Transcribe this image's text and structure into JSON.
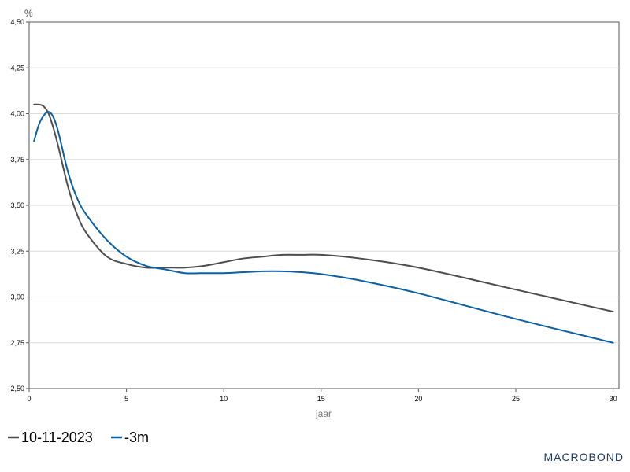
{
  "chart_data": {
    "type": "line",
    "unit_label": "%",
    "xlabel": "jaar",
    "ylabel": "",
    "xlim": [
      0,
      30.3
    ],
    "ylim": [
      2.5,
      4.5
    ],
    "x_ticks": [
      0,
      5,
      10,
      15,
      20,
      25,
      30
    ],
    "x_tick_labels": [
      "0",
      "5",
      "10",
      "15",
      "20",
      "25",
      "30"
    ],
    "y_ticks": [
      2.5,
      2.75,
      3.0,
      3.25,
      3.5,
      3.75,
      4.0,
      4.25,
      4.5
    ],
    "y_tick_labels": [
      "2,50",
      "2,75",
      "3,00",
      "3,25",
      "3,50",
      "3,75",
      "4,00",
      "4,25",
      "4,50"
    ],
    "grid": "horizontal",
    "legend_position": "bottom-left",
    "series": [
      {
        "name": "10-11-2023",
        "color": "#4d4d4d",
        "x": [
          0.25,
          0.5,
          0.75,
          1,
          1.25,
          1.5,
          2,
          2.5,
          3,
          4,
          5,
          6,
          7,
          8,
          9,
          10,
          11,
          12,
          13,
          14,
          15,
          17,
          20,
          25,
          30
        ],
        "y": [
          4.05,
          4.05,
          4.04,
          4.0,
          3.92,
          3.82,
          3.6,
          3.44,
          3.34,
          3.22,
          3.18,
          3.16,
          3.16,
          3.16,
          3.17,
          3.19,
          3.21,
          3.22,
          3.23,
          3.23,
          3.23,
          3.21,
          3.16,
          3.04,
          2.92
        ]
      },
      {
        "name": "-3m",
        "color": "#0b5fa5",
        "x": [
          0.25,
          0.5,
          0.75,
          1,
          1.25,
          1.5,
          2,
          2.5,
          3,
          4,
          5,
          6,
          7,
          8,
          9,
          10,
          11,
          12,
          13,
          14,
          15,
          17,
          20,
          25,
          30
        ],
        "y": [
          3.85,
          3.94,
          3.99,
          4.01,
          3.98,
          3.9,
          3.68,
          3.53,
          3.44,
          3.31,
          3.22,
          3.17,
          3.15,
          3.13,
          3.13,
          3.13,
          3.135,
          3.14,
          3.14,
          3.135,
          3.125,
          3.09,
          3.02,
          2.88,
          2.75
        ]
      }
    ]
  },
  "branding": {
    "logo_text": "MACROBOND"
  }
}
